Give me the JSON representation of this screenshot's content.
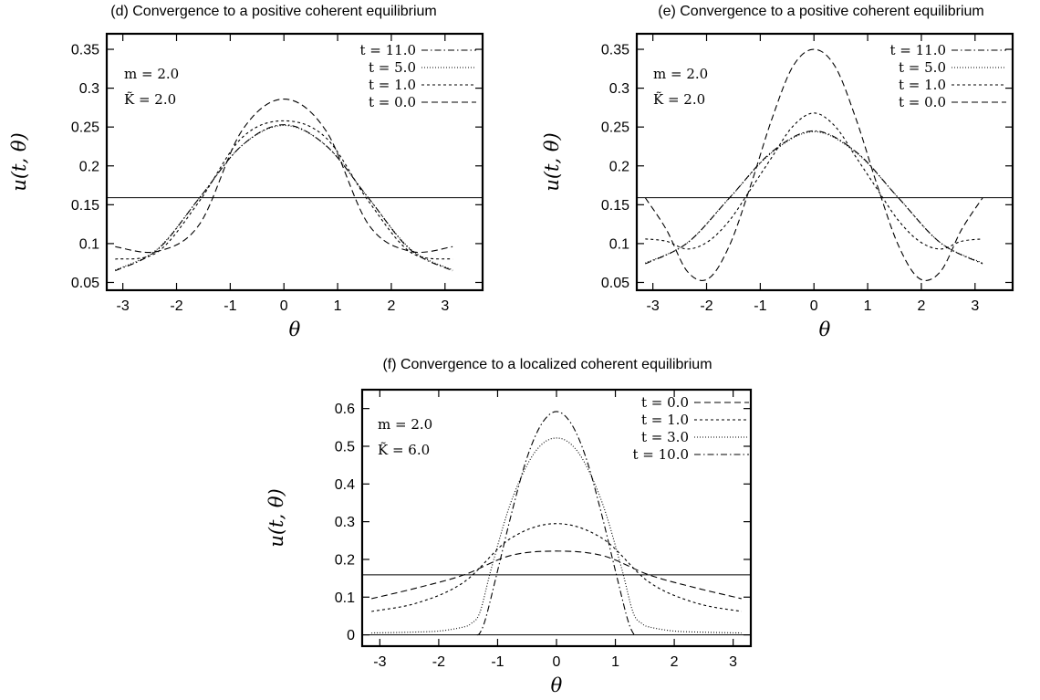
{
  "chart_data": [
    {
      "id": "d",
      "type": "line",
      "title": "(d) Convergence to a positive coherent equilibrium",
      "xlabel": "θ",
      "ylabel": "u(t, θ)",
      "xlim": [
        -3.3,
        3.7
      ],
      "ylim": [
        0.04,
        0.37
      ],
      "xticks": [
        -3,
        -2,
        -1,
        0,
        1,
        2,
        3
      ],
      "xtick_labels": [
        "-3",
        "-2",
        "-1",
        "0",
        "1",
        "2",
        "3"
      ],
      "yticks": [
        0.05,
        0.1,
        0.15,
        0.2,
        0.25,
        0.3,
        0.35
      ],
      "ytick_labels": [
        "0.05",
        "0.1",
        "0.15",
        "0.2",
        "0.25",
        "0.3",
        "0.35"
      ],
      "annotations": [
        "m = 2.0",
        "K̃ = 2.0"
      ],
      "legend_position": "top-right",
      "reference_line": {
        "y": 0.159
      },
      "series": [
        {
          "name": "t = 11.0",
          "style": "dashdot",
          "x": [
            -3.1416,
            -2.3562,
            -1.5708,
            -0.7854,
            0,
            0.7854,
            1.5708,
            2.3562,
            3.1416
          ],
          "y": [
            0.065,
            0.092,
            0.159,
            0.226,
            0.253,
            0.226,
            0.159,
            0.092,
            0.065
          ]
        },
        {
          "name": "t = 5.0",
          "style": "dotted",
          "x": [
            -3.1416,
            -2.3562,
            -1.5708,
            -0.7854,
            0,
            0.7854,
            1.5708,
            2.3562,
            3.1416
          ],
          "y": [
            0.066,
            0.093,
            0.159,
            0.226,
            0.252,
            0.226,
            0.159,
            0.093,
            0.066
          ]
        },
        {
          "name": "t = 1.0",
          "style": "shortdash",
          "x": [
            -3.1416,
            -2.3562,
            -1.5708,
            -0.7854,
            0,
            0.7854,
            1.5708,
            2.3562,
            3.1416
          ],
          "y": [
            0.08,
            0.089,
            0.155,
            0.236,
            0.258,
            0.236,
            0.155,
            0.089,
            0.08
          ]
        },
        {
          "name": "t = 0.0",
          "style": "dash",
          "x": [
            -3.1416,
            -2.3562,
            -1.5708,
            -0.7854,
            0,
            0.7854,
            1.5708,
            2.3562,
            3.1416
          ],
          "y": [
            0.096,
            0.09,
            0.125,
            0.245,
            0.286,
            0.245,
            0.125,
            0.09,
            0.096
          ]
        }
      ]
    },
    {
      "id": "e",
      "type": "line",
      "title": "(e) Convergence to a positive coherent equilibrium",
      "xlabel": "θ",
      "ylabel": "u(t, θ)",
      "xlim": [
        -3.3,
        3.7
      ],
      "ylim": [
        0.04,
        0.37
      ],
      "xticks": [
        -3,
        -2,
        -1,
        0,
        1,
        2,
        3
      ],
      "xtick_labels": [
        "-3",
        "-2",
        "-1",
        "0",
        "1",
        "2",
        "3"
      ],
      "yticks": [
        0.05,
        0.1,
        0.15,
        0.2,
        0.25,
        0.3,
        0.35
      ],
      "ytick_labels": [
        "0.05",
        "0.1",
        "0.15",
        "0.2",
        "0.25",
        "0.3",
        "0.35"
      ],
      "annotations": [
        "m = 2.0",
        "K̃ = 2.0"
      ],
      "legend_position": "top-right",
      "reference_line": {
        "y": 0.159
      },
      "series": [
        {
          "name": "t = 11.0",
          "style": "dashdot",
          "x": [
            -3.1416,
            -2.3562,
            -1.5708,
            -0.7854,
            0,
            0.7854,
            1.5708,
            2.3562,
            3.1416
          ],
          "y": [
            0.074,
            0.101,
            0.159,
            0.218,
            0.245,
            0.218,
            0.159,
            0.101,
            0.074
          ]
        },
        {
          "name": "t = 5.0",
          "style": "dotted",
          "x": [
            -3.1416,
            -2.3562,
            -1.5708,
            -0.7854,
            0,
            0.7854,
            1.5708,
            2.3562,
            3.1416
          ],
          "y": [
            0.075,
            0.101,
            0.159,
            0.217,
            0.244,
            0.217,
            0.159,
            0.101,
            0.075
          ]
        },
        {
          "name": "t = 1.0",
          "style": "shortdash",
          "x": [
            -3.1416,
            -2.7489,
            -2.3562,
            -1.9635,
            -1.5708,
            -1.1781,
            -0.7854,
            -0.3927,
            0,
            0.3927,
            0.7854,
            1.1781,
            1.5708,
            1.9635,
            2.3562,
            2.7489,
            3.1416
          ],
          "y": [
            0.106,
            0.103,
            0.093,
            0.103,
            0.13,
            0.17,
            0.211,
            0.251,
            0.268,
            0.251,
            0.211,
            0.17,
            0.13,
            0.103,
            0.093,
            0.103,
            0.106
          ]
        },
        {
          "name": "t = 0.0",
          "style": "dash",
          "x": [
            -3.1416,
            -2.7489,
            -2.3562,
            -1.9635,
            -1.5708,
            -1.1781,
            -0.7854,
            -0.3927,
            0,
            0.3927,
            0.7854,
            1.1781,
            1.5708,
            1.9635,
            2.3562,
            2.7489,
            3.1416
          ],
          "y": [
            0.159,
            0.118,
            0.064,
            0.055,
            0.098,
            0.175,
            0.26,
            0.328,
            0.35,
            0.328,
            0.26,
            0.175,
            0.098,
            0.055,
            0.064,
            0.118,
            0.159
          ]
        }
      ]
    },
    {
      "id": "f",
      "type": "line",
      "title": "(f) Convergence to a localized coherent equilibrium",
      "xlabel": "θ",
      "ylabel": "u(t, θ)",
      "xlim": [
        -3.3,
        3.3
      ],
      "ylim": [
        -0.03,
        0.65
      ],
      "xticks": [
        -3,
        -2,
        -1,
        0,
        1,
        2,
        3
      ],
      "xtick_labels": [
        "-3",
        "-2",
        "-1",
        "0",
        "1",
        "2",
        "3"
      ],
      "yticks": [
        0,
        0.1,
        0.2,
        0.3,
        0.4,
        0.5,
        0.6
      ],
      "ytick_labels": [
        "0",
        "0.1",
        "0.2",
        "0.3",
        "0.4",
        "0.5",
        "0.6"
      ],
      "annotations": [
        "m = 2.0",
        "K̃ = 6.0"
      ],
      "legend_position": "top-right",
      "reference_line": {
        "y": 0.159
      },
      "zero_line": {
        "y": 0
      },
      "series": [
        {
          "name": "t = 0.0",
          "style": "dash",
          "x": [
            -3.1416,
            -2.3562,
            -1.5708,
            -0.7854,
            0,
            0.7854,
            1.5708,
            2.3562,
            3.1416
          ],
          "y": [
            0.096,
            0.125,
            0.159,
            0.21,
            0.222,
            0.21,
            0.159,
            0.125,
            0.096
          ]
        },
        {
          "name": "t = 1.0",
          "style": "shortdash",
          "x": [
            -3.1416,
            -2.3562,
            -1.5708,
            -0.7854,
            0,
            0.7854,
            1.5708,
            2.3562,
            3.1416
          ],
          "y": [
            0.062,
            0.085,
            0.14,
            0.255,
            0.295,
            0.255,
            0.14,
            0.085,
            0.062
          ]
        },
        {
          "name": "t = 3.0",
          "style": "dotted",
          "x": [
            -3.1416,
            -2.5,
            -2,
            -1.6,
            -1.45,
            -1.3,
            -1.1,
            -0.8,
            -0.5,
            -0.25,
            0,
            0.25,
            0.5,
            0.8,
            1.1,
            1.3,
            1.45,
            1.6,
            2,
            2.5,
            3.1416
          ],
          "y": [
            0.005,
            0.007,
            0.01,
            0.02,
            0.03,
            0.06,
            0.18,
            0.34,
            0.45,
            0.505,
            0.522,
            0.505,
            0.45,
            0.34,
            0.18,
            0.06,
            0.03,
            0.02,
            0.01,
            0.007,
            0.005
          ]
        },
        {
          "name": "t = 10.0",
          "style": "dashdot",
          "x": [
            -1.35,
            -1.3,
            -1.2,
            -1,
            -0.75,
            -0.5,
            -0.25,
            0,
            0.25,
            0.5,
            0.75,
            1,
            1.2,
            1.3,
            1.35
          ],
          "y": [
            0,
            0.005,
            0.045,
            0.17,
            0.33,
            0.47,
            0.56,
            0.592,
            0.56,
            0.47,
            0.33,
            0.17,
            0.045,
            0.005,
            0
          ]
        }
      ]
    }
  ]
}
